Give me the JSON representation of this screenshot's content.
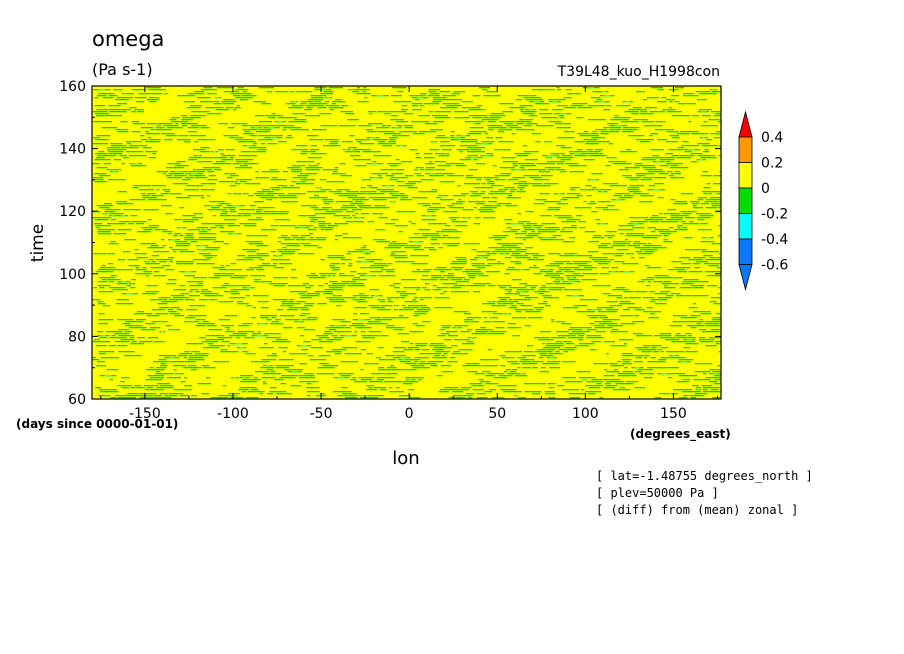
{
  "header": {
    "variable": "omega",
    "units": "(Pa s-1)",
    "experiment": "T39L48_kuo_H1998con"
  },
  "axes": {
    "ylabel": "time",
    "xlabel": "lon",
    "x_units": "(degrees_east)",
    "y_units": "(days since 0000-01-01)"
  },
  "notes": [
    "[ lat=-1.48755 degrees_north ]",
    "[ plev=50000 Pa ]",
    "[ (diff) from (mean) zonal ]"
  ],
  "chart_data": {
    "type": "heatmap",
    "title": "omega",
    "subtitle": "T39L48_kuo_H1998con",
    "xlabel": "lon",
    "ylabel": "time",
    "xlim": [
      -180,
      177
    ],
    "ylim": [
      60,
      160
    ],
    "x_ticks": [
      -150,
      -100,
      -50,
      0,
      50,
      100,
      150
    ],
    "x_tick_labels": [
      "-150",
      "-100",
      "-50",
      "0",
      "50",
      "100",
      "150"
    ],
    "y_ticks": [
      60,
      80,
      100,
      120,
      140,
      160
    ],
    "y_tick_labels": [
      "60",
      "80",
      "100",
      "120",
      "140",
      "160"
    ],
    "colorbar": {
      "levels": [
        -0.6,
        -0.4,
        -0.2,
        0,
        0.2,
        0.4
      ],
      "labels": [
        "-0.6",
        "-0.4",
        "-0.2",
        "0",
        "0.2",
        "0.4"
      ],
      "colors": [
        "#0a78ff",
        "#00ffff",
        "#00dd00",
        "#ffff00",
        "#ff9900",
        "#ff0000"
      ],
      "extend": "both"
    },
    "description": "Hovmoller of omega anomaly; dominant yellow (0 to 0.2) with green (-0.2 to 0) streaks tilting down-right (westward-propagating), sparse cyan (-0.4 to -0.2)"
  }
}
